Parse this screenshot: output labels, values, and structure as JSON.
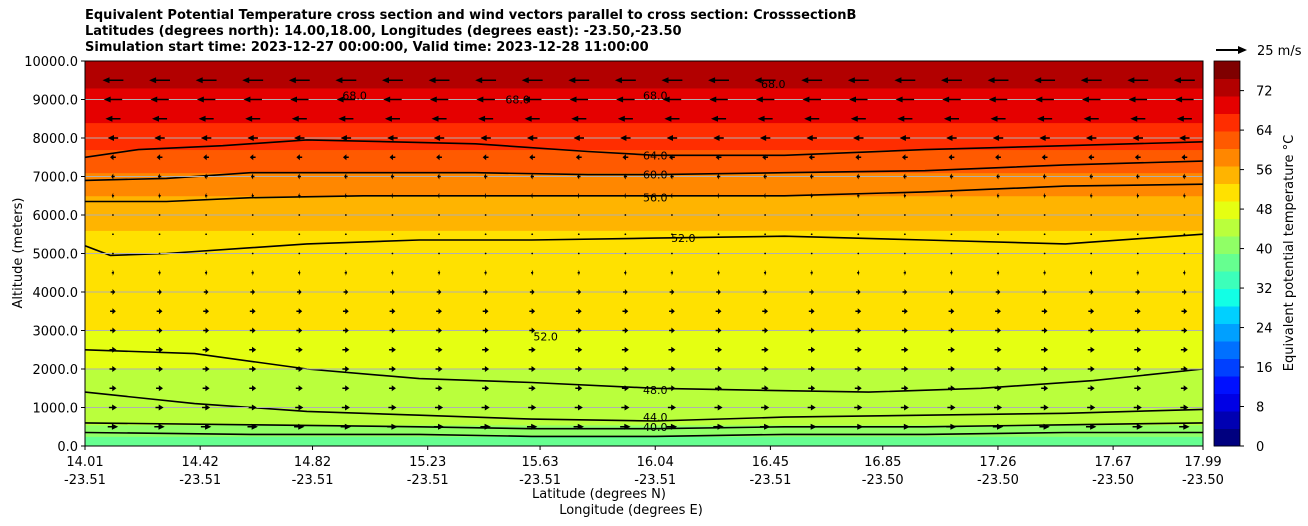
{
  "chart_data": {
    "type": "contour",
    "title_lines": [
      "Equivalent Potential Temperature cross section and wind vectors parallel to cross section: CrosssectionB",
      "Latitudes (degrees north): 14.00,18.00, Longitudes (degrees east): -23.50,-23.50",
      "Simulation start time: 2023-12-27 00:00:00, Valid time: 2023-12-28 11:00:00"
    ],
    "ylabel": "Altitude (meters)",
    "xlabel_lat": "Latitude (degrees N)",
    "xlabel_lon": "Longitude (degrees E)",
    "y_ticks": [
      "0.0",
      "1000.0",
      "2000.0",
      "3000.0",
      "4000.0",
      "5000.0",
      "6000.0",
      "7000.0",
      "8000.0",
      "9000.0",
      "10000.0"
    ],
    "y_tick_values": [
      0,
      1000,
      2000,
      3000,
      4000,
      5000,
      6000,
      7000,
      8000,
      9000,
      10000
    ],
    "ylim": [
      0,
      10000
    ],
    "xlim": [
      14.01,
      17.99
    ],
    "x_ticks": [
      {
        "lat": "14.01",
        "lon": "-23.51"
      },
      {
        "lat": "14.42",
        "lon": "-23.51"
      },
      {
        "lat": "14.82",
        "lon": "-23.51"
      },
      {
        "lat": "15.23",
        "lon": "-23.51"
      },
      {
        "lat": "15.63",
        "lon": "-23.51"
      },
      {
        "lat": "16.04",
        "lon": "-23.51"
      },
      {
        "lat": "16.45",
        "lon": "-23.51"
      },
      {
        "lat": "16.85",
        "lon": "-23.50"
      },
      {
        "lat": "17.26",
        "lon": "-23.50"
      },
      {
        "lat": "17.67",
        "lon": "-23.50"
      },
      {
        "lat": "17.99",
        "lon": "-23.50"
      }
    ],
    "x_tick_values": [
      14.01,
      14.42,
      14.82,
      15.23,
      15.63,
      16.04,
      16.45,
      16.85,
      17.26,
      17.67,
      17.99
    ],
    "grid": "horizontal",
    "contour_labels": [
      {
        "text": "64.0",
        "lat": 16.04,
        "alt": 7550
      },
      {
        "text": "60.0",
        "lat": 16.04,
        "alt": 7050
      },
      {
        "text": "56.0",
        "lat": 16.04,
        "alt": 6450
      },
      {
        "text": "52.0",
        "lat": 16.14,
        "alt": 5400
      },
      {
        "text": "52.0",
        "lat": 15.65,
        "alt": 2850
      },
      {
        "text": "48.0",
        "lat": 16.04,
        "alt": 1450
      },
      {
        "text": "44.0",
        "lat": 16.04,
        "alt": 750
      },
      {
        "text": "40.0",
        "lat": 16.04,
        "alt": 500
      },
      {
        "text": "68.0",
        "lat": 16.04,
        "alt": 9100
      },
      {
        "text": "68.0",
        "lat": 15.55,
        "alt": 9000
      },
      {
        "text": "68.0",
        "lat": 14.97,
        "alt": 9100
      },
      {
        "text": "68.0",
        "lat": 16.46,
        "alt": 9400
      }
    ],
    "contour_levels": [
      {
        "level": 48,
        "lat": [
          14.01,
          14.4,
          14.8,
          15.2,
          15.6,
          16.04,
          16.4,
          16.8,
          17.2,
          17.6,
          17.99
        ],
        "alt": [
          2500,
          2400,
          2000,
          1750,
          1650,
          1500,
          1450,
          1400,
          1500,
          1700,
          2000
        ]
      },
      {
        "level": 52,
        "lat": [
          14.01,
          14.1,
          14.3,
          14.8,
          15.2,
          15.6,
          16.04,
          16.5,
          17.0,
          17.5,
          17.99
        ],
        "alt": [
          5200,
          4950,
          5000,
          5250,
          5350,
          5350,
          5400,
          5450,
          5350,
          5250,
          5500
        ]
      },
      {
        "level": 56,
        "lat": [
          14.01,
          14.3,
          14.6,
          15.0,
          15.4,
          15.8,
          16.04,
          16.5,
          17.0,
          17.5,
          17.99
        ],
        "alt": [
          6350,
          6350,
          6450,
          6500,
          6500,
          6500,
          6500,
          6500,
          6600,
          6750,
          6800
        ]
      },
      {
        "level": 60,
        "lat": [
          14.01,
          14.3,
          14.6,
          15.0,
          15.4,
          15.8,
          16.04,
          16.5,
          17.0,
          17.5,
          17.99
        ],
        "alt": [
          6900,
          6950,
          7100,
          7100,
          7100,
          7050,
          7050,
          7100,
          7150,
          7300,
          7400
        ]
      },
      {
        "level": 64,
        "lat": [
          14.01,
          14.2,
          14.5,
          14.8,
          15.1,
          15.4,
          15.8,
          16.04,
          16.5,
          17.0,
          17.5,
          17.99
        ],
        "alt": [
          7500,
          7700,
          7800,
          7950,
          7900,
          7850,
          7650,
          7550,
          7550,
          7700,
          7800,
          7900
        ]
      },
      {
        "level": 44,
        "lat": [
          14.01,
          14.4,
          14.8,
          15.2,
          15.6,
          16.04,
          16.5,
          17.0,
          17.5,
          17.99
        ],
        "alt": [
          1400,
          1100,
          900,
          800,
          700,
          650,
          750,
          800,
          850,
          950
        ]
      },
      {
        "level": 40,
        "lat": [
          14.01,
          14.6,
          15.2,
          15.6,
          16.04,
          16.5,
          17.0,
          17.5,
          17.99
        ],
        "alt": [
          600,
          550,
          500,
          450,
          450,
          500,
          500,
          550,
          600
        ]
      },
      {
        "level": 36,
        "lat": [
          14.01,
          14.6,
          15.2,
          15.6,
          16.04,
          16.5,
          17.0,
          17.5,
          17.99
        ],
        "alt": [
          350,
          300,
          300,
          250,
          250,
          300,
          300,
          350,
          350
        ]
      }
    ],
    "colorbar": {
      "label": "Equivalent potential temperature °C",
      "ticks": [
        "0",
        "8",
        "16",
        "24",
        "32",
        "40",
        "48",
        "56",
        "64",
        "72"
      ],
      "tick_values": [
        0,
        8,
        16,
        24,
        32,
        40,
        48,
        56,
        64,
        72
      ],
      "range": [
        0,
        78
      ],
      "colors": [
        "#00007f",
        "#0000b2",
        "#0000e5",
        "#0010ff",
        "#0040ff",
        "#0070ff",
        "#00a0ff",
        "#00d0ff",
        "#12ffe5",
        "#3cffba",
        "#66ff90",
        "#90ff66",
        "#baff3c",
        "#e5ff12",
        "#ffe100",
        "#ffb400",
        "#ff8700",
        "#ff5a00",
        "#ff2d00",
        "#e50000",
        "#b20000",
        "#7f0000"
      ]
    },
    "reference_vector": {
      "label": "25 m/s",
      "value": 25
    },
    "wind_rows": [
      {
        "alt": 9500,
        "u": -18
      },
      {
        "alt": 9000,
        "u": -16
      },
      {
        "alt": 8500,
        "u": -13
      },
      {
        "alt": 8000,
        "u": -9
      },
      {
        "alt": 7500,
        "u": -5
      },
      {
        "alt": 7000,
        "u": -3
      },
      {
        "alt": 6500,
        "u": -2
      },
      {
        "alt": 6000,
        "u": -1
      },
      {
        "alt": 5500,
        "u": 0.5
      },
      {
        "alt": 5000,
        "u": 1
      },
      {
        "alt": 4500,
        "u": 2
      },
      {
        "alt": 4000,
        "u": 4
      },
      {
        "alt": 3500,
        "u": 5
      },
      {
        "alt": 3000,
        "u": 5
      },
      {
        "alt": 2500,
        "u": 6
      },
      {
        "alt": 2000,
        "u": 6
      },
      {
        "alt": 1500,
        "u": 6
      },
      {
        "alt": 1000,
        "u": 7
      },
      {
        "alt": 500,
        "u": 9
      }
    ],
    "field_levels": [
      {
        "value": 36,
        "alt": 0
      },
      {
        "value": 40,
        "alt": 250
      },
      {
        "value": 43,
        "alt": 550
      },
      {
        "value": 46,
        "alt": 1100
      },
      {
        "value": 49,
        "alt": 2000
      },
      {
        "value": 51,
        "alt": 3000
      },
      {
        "value": 52,
        "alt": 4500
      },
      {
        "value": 54,
        "alt": 5600
      },
      {
        "value": 57,
        "alt": 6500
      },
      {
        "value": 61,
        "alt": 7100
      },
      {
        "value": 65,
        "alt": 7700
      },
      {
        "value": 68,
        "alt": 8400
      },
      {
        "value": 72,
        "alt": 9300
      },
      {
        "value": 76,
        "alt": 10000
      }
    ]
  }
}
